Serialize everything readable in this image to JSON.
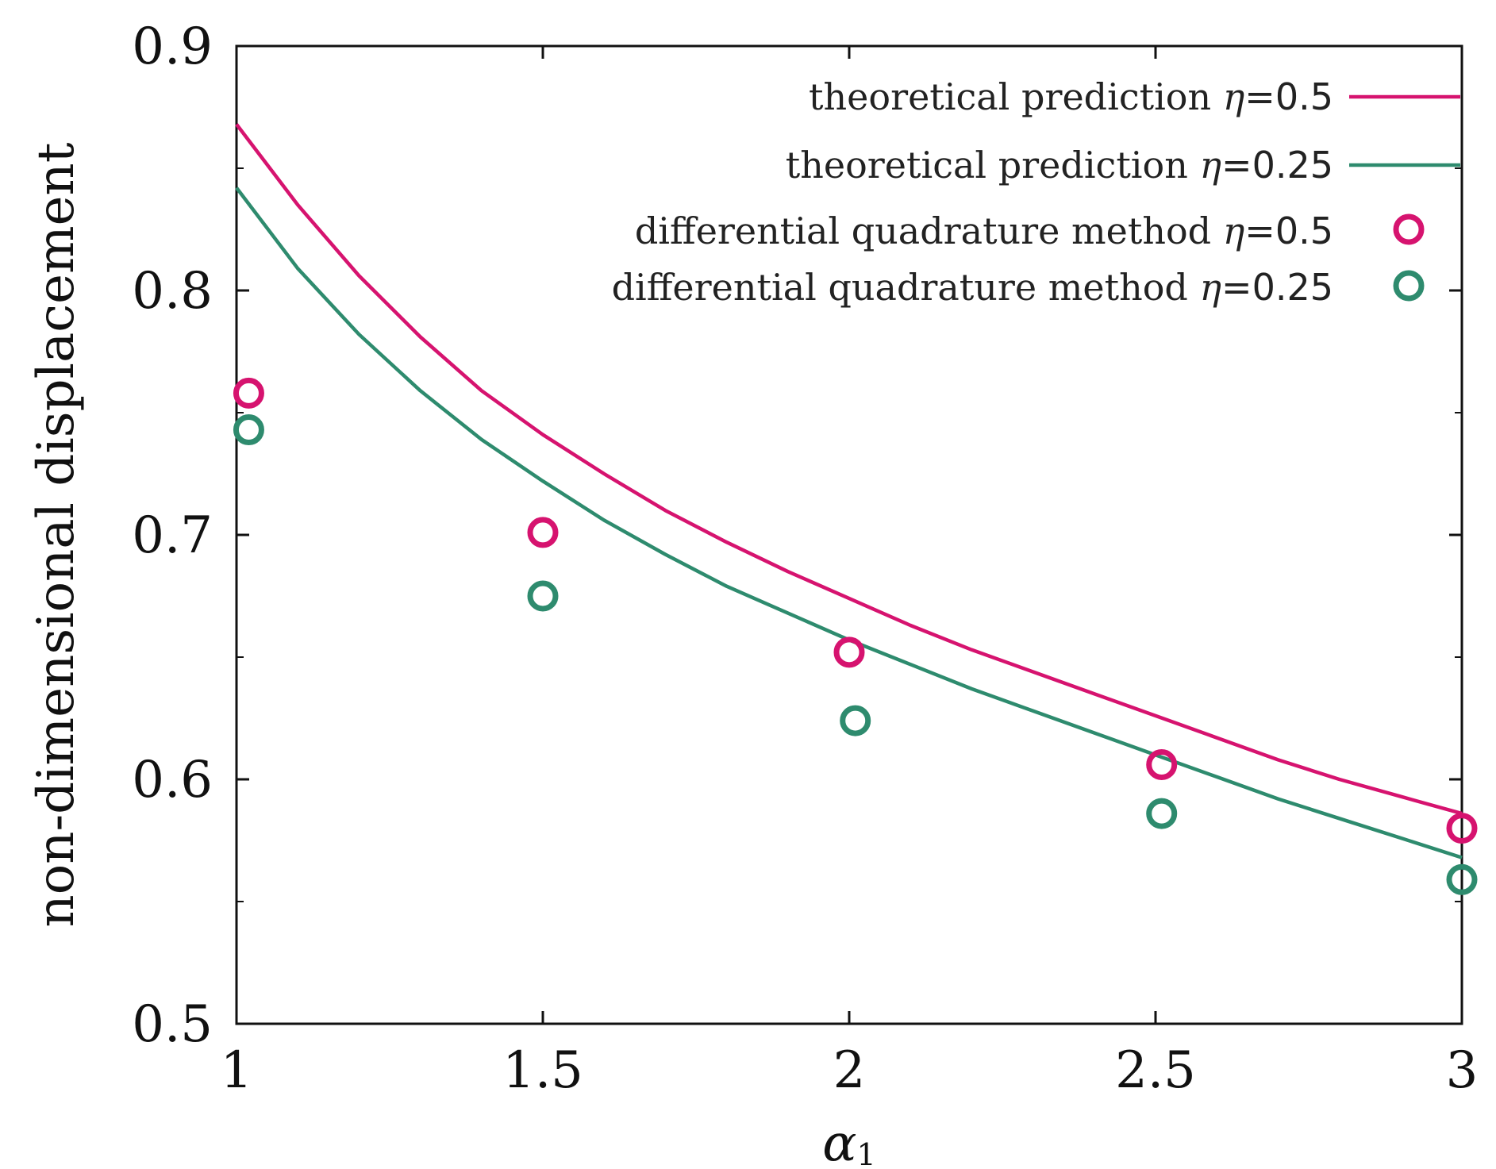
{
  "chart_data": {
    "type": "line",
    "title": "",
    "xlabel": "α",
    "xlabel_subscript": "1",
    "ylabel": "non-dimensional displacement",
    "xlim": [
      1,
      3
    ],
    "ylim": [
      0.5,
      0.9
    ],
    "xticks": [
      1,
      1.5,
      2,
      2.5,
      3
    ],
    "xtick_labels": [
      "1",
      "1.5",
      "2",
      "2.5",
      "3"
    ],
    "yticks": [
      0.5,
      0.6,
      0.7,
      0.8,
      0.9
    ],
    "ytick_labels": [
      "0.5",
      "0.6",
      "0.7",
      "0.8",
      "0.9"
    ],
    "y_minor_ticks": [
      0.55,
      0.65,
      0.75,
      0.85
    ],
    "legend_position": "top-right",
    "series": [
      {
        "name": "theoretical prediction η=0.5",
        "label_text": "theoretical prediction",
        "label_eta": "η",
        "label_value": "=0.5",
        "kind": "line",
        "color": "#d6136f",
        "x": [
          1.0,
          1.1,
          1.2,
          1.3,
          1.4,
          1.5,
          1.6,
          1.7,
          1.8,
          1.9,
          2.0,
          2.1,
          2.2,
          2.3,
          2.4,
          2.5,
          2.6,
          2.7,
          2.8,
          2.9,
          3.0
        ],
        "y": [
          0.868,
          0.835,
          0.806,
          0.781,
          0.759,
          0.741,
          0.725,
          0.71,
          0.697,
          0.685,
          0.674,
          0.663,
          0.653,
          0.644,
          0.635,
          0.626,
          0.617,
          0.608,
          0.6,
          0.593,
          0.586
        ]
      },
      {
        "name": "theoretical prediction η=0.25",
        "label_text": "theoretical prediction",
        "label_eta": "η",
        "label_value": "=0.25",
        "kind": "line",
        "color": "#2e8b6e",
        "x": [
          1.0,
          1.1,
          1.2,
          1.3,
          1.4,
          1.5,
          1.6,
          1.7,
          1.8,
          1.9,
          2.0,
          2.1,
          2.2,
          2.3,
          2.4,
          2.5,
          2.6,
          2.7,
          2.8,
          2.9,
          3.0
        ],
        "y": [
          0.842,
          0.809,
          0.782,
          0.759,
          0.739,
          0.722,
          0.706,
          0.692,
          0.679,
          0.668,
          0.657,
          0.647,
          0.637,
          0.628,
          0.619,
          0.61,
          0.601,
          0.592,
          0.584,
          0.576,
          0.568
        ]
      },
      {
        "name": "differential quadrature method η=0.5",
        "label_text": "differential quadrature method",
        "label_eta": "η",
        "label_value": "=0.5",
        "kind": "scatter",
        "color": "#d6136f",
        "x": [
          1.02,
          1.5,
          2.0,
          2.51,
          3.0
        ],
        "y": [
          0.758,
          0.701,
          0.652,
          0.606,
          0.58
        ]
      },
      {
        "name": "differential quadrature method η=0.25",
        "label_text": "differential quadrature method",
        "label_eta": "η",
        "label_value": "=0.25",
        "kind": "scatter",
        "color": "#2e8b6e",
        "x": [
          1.02,
          1.5,
          2.01,
          2.51,
          3.0
        ],
        "y": [
          0.743,
          0.675,
          0.624,
          0.586,
          0.559
        ]
      }
    ]
  }
}
